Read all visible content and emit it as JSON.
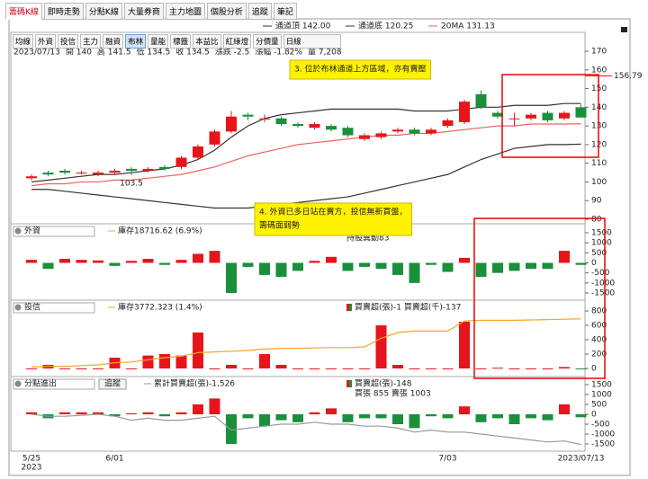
{
  "tabs": [
    "籌碼K線",
    "即時走勢",
    "分點K線",
    "大量券商",
    "主力地圖",
    "個股分析",
    "追蹤",
    "筆記"
  ],
  "toolbar": [
    "均線",
    "外資",
    "投信",
    "主力",
    "融資",
    "布林",
    "量能",
    "標籤",
    "本益比",
    "紅綠燈",
    "分價量",
    "日線"
  ],
  "info": [
    "2023/07/13",
    "開 140",
    "高 141.5",
    "低 134.5",
    "收 134.5",
    "漲跌 -2.5",
    "漲幅 -1.82%",
    "量 7,208"
  ],
  "callouts": [
    {
      "lines": [
        "3. 位於布林通道上方區域，亦有賣壓"
      ]
    },
    {
      "lines": [
        "4. 外資已多日站在賣方，投信無新買盤，",
        "籌碼面弱勢"
      ]
    }
  ],
  "x_year": "2023",
  "chart_data": [
    {
      "type": "candlestick",
      "categories": [
        "5/25",
        null,
        null,
        null,
        null,
        "6/01",
        null,
        null,
        null,
        null,
        null,
        null,
        null,
        null,
        null,
        null,
        null,
        null,
        null,
        null,
        null,
        null,
        null,
        null,
        null,
        "7/03",
        null,
        null,
        null,
        null,
        null,
        null,
        null,
        "2023/07/13"
      ],
      "open": [
        102,
        105,
        106,
        105,
        104,
        105,
        107,
        106,
        108,
        108,
        113,
        120,
        127,
        136,
        134,
        134,
        131,
        129,
        130,
        129,
        123,
        124,
        127,
        128,
        126,
        130,
        132,
        147,
        137,
        134,
        134,
        137,
        134,
        140
      ],
      "close": [
        103,
        104,
        105,
        105,
        105,
        106,
        106,
        107,
        107,
        113,
        119,
        127,
        135,
        135,
        134,
        131,
        130,
        131,
        128,
        125,
        125,
        126,
        128,
        126,
        128,
        133,
        143,
        140,
        135,
        134,
        136,
        133,
        137,
        134.5
      ],
      "high": [
        104,
        106,
        107,
        106,
        106,
        107,
        108,
        108,
        109,
        114,
        120,
        128,
        138,
        137,
        136,
        135,
        132,
        132,
        131,
        130,
        126,
        127,
        129,
        129,
        129,
        134,
        144,
        149,
        138,
        137,
        137,
        138,
        138,
        141.5
      ],
      "low": [
        101,
        103,
        104,
        104,
        103,
        104,
        103.5,
        105,
        106,
        107,
        112,
        119,
        126,
        133,
        132,
        130,
        129,
        128,
        127,
        124,
        122,
        123,
        126,
        125,
        125,
        129,
        131,
        139,
        134,
        130,
        133,
        132,
        133,
        134.5
      ],
      "up_color": "#e8141b",
      "down_color": "#1a8f3c",
      "series": [
        {
          "name": "通道頂 142.00",
          "color": "#333333",
          "values": [
            100,
            101,
            102,
            103,
            104,
            104,
            105,
            106,
            107,
            109,
            112,
            117,
            124,
            130,
            134,
            136,
            137,
            138,
            139,
            139,
            139,
            139,
            139,
            138,
            138,
            138,
            139,
            140,
            140,
            141,
            141,
            141,
            142,
            142
          ]
        },
        {
          "name": "通道底 120.25",
          "color": "#333333",
          "values": [
            96,
            96,
            95,
            94,
            93,
            92,
            91,
            90,
            89,
            88,
            87,
            86,
            86,
            86,
            87,
            88,
            89,
            90,
            91,
            92,
            94,
            96,
            98,
            100,
            102,
            104,
            108,
            112,
            115,
            118,
            119,
            120,
            120,
            120.25
          ]
        },
        {
          "name": "20MA 131.13",
          "color": "#f06060",
          "values": [
            98,
            99,
            99,
            100,
            100,
            101,
            101,
            102,
            103,
            104,
            106,
            108,
            111,
            114,
            116,
            118,
            120,
            121,
            122,
            123,
            124,
            125,
            125,
            126,
            126,
            127,
            128,
            129,
            130,
            130,
            131,
            131,
            131,
            131.13
          ]
        }
      ],
      "ylim": [
        80,
        170
      ],
      "yticks": [
        80,
        90,
        100,
        110,
        120,
        130,
        140,
        150,
        160,
        170
      ],
      "high_marker": 156.79,
      "low_marker": {
        "value": 103.5,
        "index": 6
      }
    },
    {
      "type": "bar",
      "panel": "外資",
      "note": "庫存18716.62 (6.9%)",
      "annotation": "持股異動83",
      "up_color": "#e8141b",
      "down_color": "#1a8f3c",
      "values": [
        150,
        -300,
        200,
        150,
        120,
        -150,
        100,
        200,
        -100,
        150,
        450,
        600,
        -1500,
        -200,
        -600,
        -700,
        -400,
        100,
        300,
        -400,
        -200,
        -300,
        -600,
        -1000,
        -100,
        -450,
        250,
        -700,
        -500,
        -400,
        -300,
        -300,
        600,
        -100
      ],
      "ylim": [
        -1500,
        1500
      ],
      "yticks": [
        1500,
        1000,
        500,
        0,
        -500,
        -1000,
        -1500
      ]
    },
    {
      "type": "bar",
      "panel": "投信",
      "up_color": "#e8141b",
      "down_color": "#1a8f3c",
      "bar_name": "買賣超(張)-1 買賣超(千)-137",
      "values": [
        0,
        50,
        0,
        0,
        0,
        150,
        0,
        180,
        200,
        180,
        500,
        0,
        50,
        0,
        200,
        50,
        0,
        0,
        0,
        0,
        0,
        600,
        50,
        0,
        0,
        0,
        650,
        0,
        10,
        0,
        0,
        0,
        20,
        -1
      ],
      "series": [
        {
          "name": "庫存3772.323 (1.4%)",
          "color": "#f5a623",
          "values": [
            20,
            30,
            30,
            40,
            50,
            80,
            90,
            120,
            150,
            170,
            220,
            230,
            240,
            250,
            270,
            280,
            280,
            285,
            290,
            290,
            300,
            420,
            500,
            520,
            520,
            520,
            660,
            670,
            670,
            670,
            675,
            680,
            685,
            690
          ]
        }
      ],
      "ylim": [
        0,
        800
      ],
      "yticks": [
        800,
        600,
        400,
        200,
        0
      ]
    },
    {
      "type": "bar",
      "panel": "分點進出",
      "button": "追蹤",
      "up_color": "#e8141b",
      "down_color": "#1a8f3c",
      "bar_name": "買賣超(張)-148",
      "annotation": "買張 855 賣張 1003",
      "values": [
        100,
        -200,
        100,
        100,
        100,
        -100,
        50,
        100,
        -100,
        100,
        500,
        800,
        -1500,
        -200,
        -600,
        -300,
        -400,
        100,
        300,
        -400,
        -200,
        -200,
        -500,
        -700,
        -100,
        -200,
        400,
        -400,
        -200,
        -500,
        -200,
        -300,
        500,
        -148
      ],
      "series": [
        {
          "name": "累計買賣超(張)-1,526",
          "color": "#999999",
          "values": [
            0,
            -100,
            -100,
            -50,
            0,
            -100,
            -300,
            -200,
            -300,
            -300,
            -200,
            -100,
            -800,
            -700,
            -600,
            -500,
            -500,
            -400,
            -500,
            -500,
            -600,
            -600,
            -700,
            -900,
            -800,
            -900,
            -900,
            -1000,
            -1100,
            -1200,
            -1300,
            -1400,
            -1350,
            -1526
          ]
        }
      ],
      "ylim": [
        -1500,
        1500
      ],
      "yticks": [
        1500,
        1000,
        500,
        0,
        -500,
        -1000,
        -1500
      ]
    }
  ]
}
